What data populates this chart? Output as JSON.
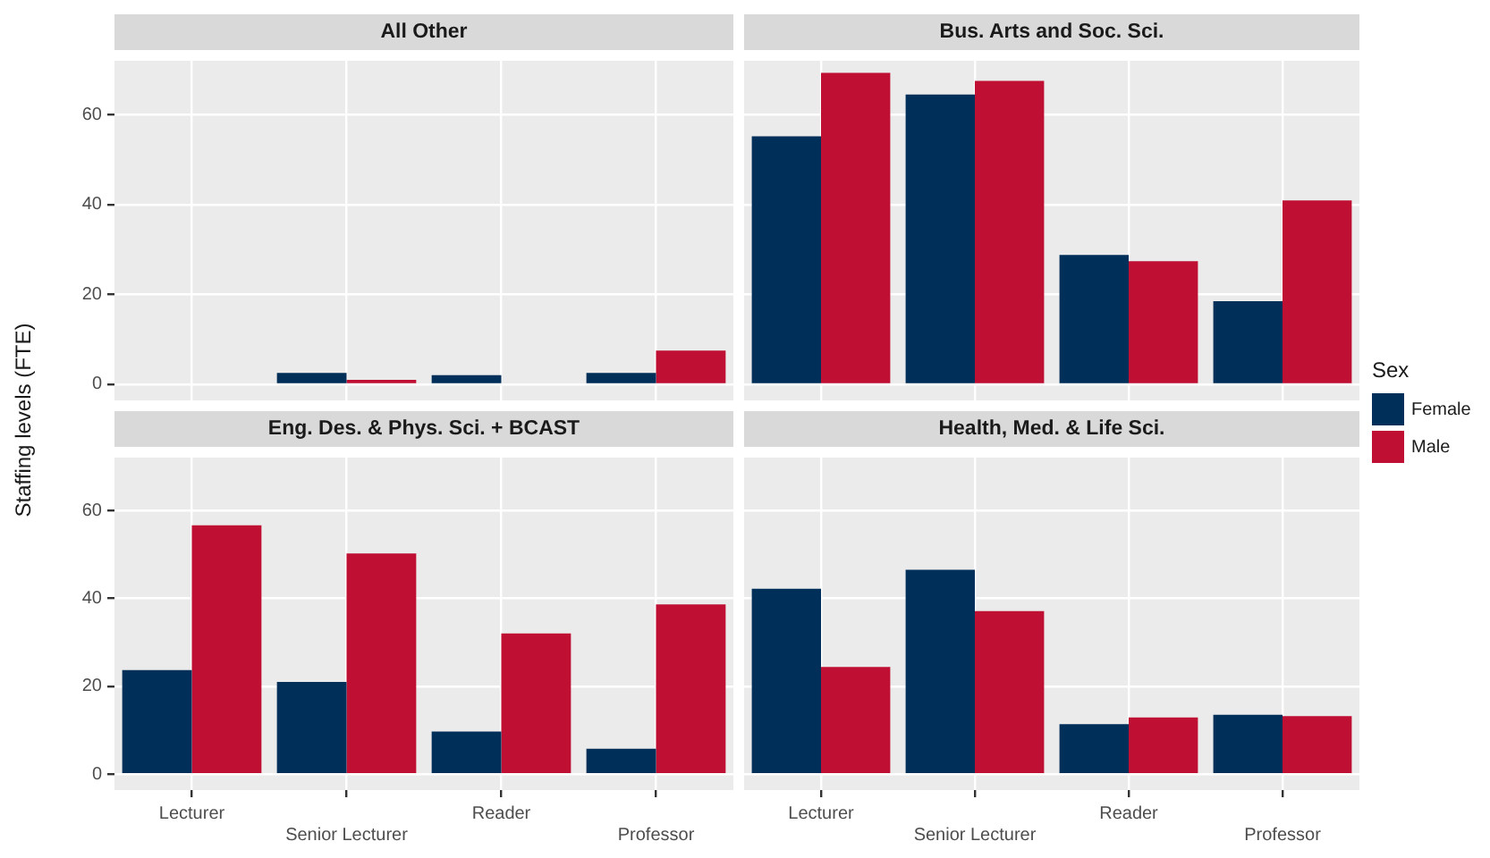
{
  "chart_data": [
    {
      "type": "bar",
      "title": "All Other",
      "ylabel": "Staffing levels (FTE)",
      "categories": [
        "Lecturer",
        "Senior Lecturer",
        "Reader",
        "Professor"
      ],
      "series": [
        {
          "color": "#002f5a",
          "values": [
            null,
            2.5,
            2,
            2.5
          ]
        },
        {
          "color": "#bf1034",
          "values": [
            null,
            1,
            null,
            7.5
          ]
        }
      ],
      "ylim": [
        -3.6,
        72
      ],
      "yticks": [
        0,
        20,
        40,
        60
      ],
      "grid": true,
      "tick_labels": "y"
    },
    {
      "type": "bar",
      "title": "Bus. Arts and Soc. Sci.",
      "legend": "right",
      "legend_title": "Sex",
      "categories": [
        "Lecturer",
        "Senior Lecturer",
        "Reader",
        "Professor"
      ],
      "series": [
        {
          "name": "Female",
          "color": "#002f5a",
          "values": [
            55.2,
            64.5,
            28.8,
            18.5
          ]
        },
        {
          "name": "Male",
          "color": "#bf1034",
          "values": [
            69.3,
            67.5,
            27.4,
            40.9
          ]
        }
      ],
      "ylim": [
        -3.6,
        72
      ],
      "yticks": [
        0,
        20,
        40,
        60
      ],
      "grid": true,
      "tick_labels": false
    },
    {
      "type": "bar",
      "title": "Eng. Des. & Phys. Sci. + BCAST",
      "categories": [
        "Lecturer",
        "Senior Lecturer",
        "Reader",
        "Professor"
      ],
      "series": [
        {
          "color": "#002f5a",
          "values": [
            23.7,
            21.0,
            9.7,
            5.8
          ]
        },
        {
          "color": "#bf1034",
          "values": [
            56.6,
            50.2,
            32.0,
            38.6
          ]
        }
      ],
      "ylim": [
        -3.6,
        72
      ],
      "yticks": [
        0,
        20,
        40,
        60
      ],
      "grid": true
    },
    {
      "type": "bar",
      "title": "Health, Med. & Life Sci.",
      "categories": [
        "Lecturer",
        "Senior Lecturer",
        "Reader",
        "Professor"
      ],
      "series": [
        {
          "color": "#002f5a",
          "values": [
            42.2,
            46.5,
            11.4,
            13.5
          ]
        },
        {
          "color": "#bf1034",
          "values": [
            24.4,
            37.1,
            12.9,
            13.2
          ]
        }
      ],
      "ylim": [
        -3.6,
        72
      ],
      "yticks": [
        0,
        20,
        40,
        60
      ],
      "grid": true,
      "tick_labels": "x"
    }
  ]
}
